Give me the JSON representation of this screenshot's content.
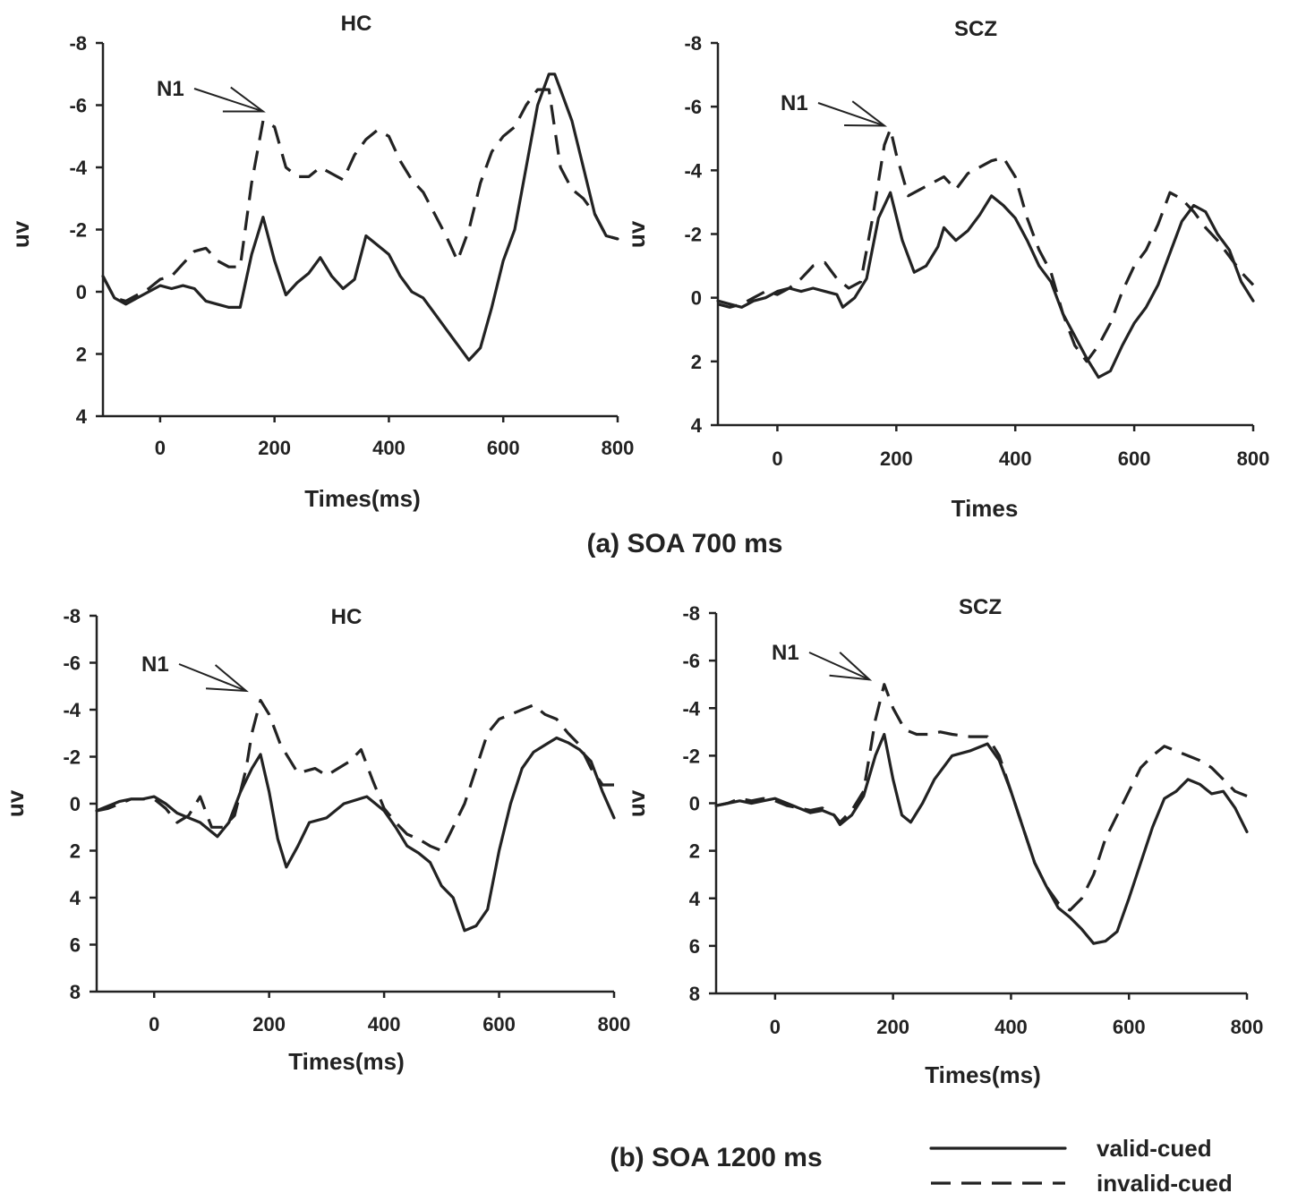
{
  "captions": {
    "top": "(a) SOA 700 ms",
    "bottom": "(b) SOA 1200 ms"
  },
  "legend": {
    "valid": "valid-cued",
    "invalid": "invalid-cued"
  },
  "annotation": "N1",
  "chart_data": [
    {
      "type": "line",
      "title": "HC",
      "xlabel": "Times(ms)",
      "ylabel": "uv",
      "xlim": [
        -100,
        800
      ],
      "ylim": [
        4,
        -8
      ],
      "y_inverted": true,
      "xticks": [
        0,
        200,
        400,
        600,
        800
      ],
      "yticks": [
        -8,
        -6,
        -4,
        -2,
        0,
        2,
        4
      ],
      "annotation": {
        "text": "N1",
        "x": 180,
        "y": -5.8
      },
      "series": [
        {
          "name": "valid-cued",
          "style": "solid",
          "x": [
            -100,
            -80,
            -60,
            -40,
            -20,
            0,
            20,
            40,
            60,
            80,
            100,
            120,
            140,
            160,
            180,
            200,
            220,
            240,
            260,
            280,
            300,
            320,
            340,
            360,
            380,
            400,
            420,
            440,
            460,
            480,
            500,
            520,
            540,
            560,
            580,
            600,
            620,
            640,
            660,
            680,
            690,
            700,
            720,
            740,
            760,
            780,
            800
          ],
          "y": [
            -0.5,
            0.2,
            0.4,
            0.2,
            0,
            -0.2,
            -0.1,
            -0.2,
            -0.1,
            0.3,
            0.4,
            0.5,
            0.5,
            -1.2,
            -2.4,
            -1.0,
            0.1,
            -0.3,
            -0.6,
            -1.1,
            -0.5,
            -0.1,
            -0.4,
            -1.8,
            -1.5,
            -1.2,
            -0.5,
            0,
            0.2,
            0.7,
            1.2,
            1.7,
            2.2,
            1.8,
            0.5,
            -1.0,
            -2.0,
            -4.0,
            -6.0,
            -7.0,
            -7.0,
            -6.5,
            -5.5,
            -4.0,
            -2.5,
            -1.8,
            -1.7
          ]
        },
        {
          "name": "invalid-cued",
          "style": "dashed",
          "x": [
            -100,
            -80,
            -60,
            -40,
            -20,
            0,
            20,
            40,
            60,
            80,
            100,
            120,
            140,
            160,
            180,
            200,
            220,
            240,
            260,
            280,
            300,
            320,
            340,
            360,
            380,
            400,
            420,
            440,
            460,
            480,
            500,
            520,
            540,
            560,
            580,
            600,
            620,
            640,
            660,
            680,
            700,
            720,
            740,
            760,
            780,
            800
          ],
          "y": [
            -0.5,
            0.2,
            0.3,
            0.1,
            -0.1,
            -0.4,
            -0.5,
            -0.9,
            -1.3,
            -1.4,
            -1.0,
            -0.8,
            -0.8,
            -3.5,
            -5.5,
            -5.3,
            -4.0,
            -3.7,
            -3.7,
            -4.0,
            -3.8,
            -3.6,
            -4.4,
            -4.9,
            -5.2,
            -5.0,
            -4.2,
            -3.6,
            -3.2,
            -2.5,
            -1.8,
            -1.0,
            -2.0,
            -3.5,
            -4.5,
            -5.0,
            -5.3,
            -6.0,
            -6.5,
            -6.5,
            -4.0,
            -3.3,
            -3.0,
            -2.5,
            -1.8,
            -1.7
          ]
        }
      ]
    },
    {
      "type": "line",
      "title": "SCZ",
      "xlabel": "Times",
      "ylabel": "uv",
      "xlim": [
        -100,
        800
      ],
      "ylim": [
        4,
        -8
      ],
      "y_inverted": true,
      "xticks": [
        0,
        200,
        400,
        600,
        800
      ],
      "yticks": [
        -8,
        -6,
        -4,
        -2,
        0,
        2,
        4
      ],
      "annotation": {
        "text": "N1",
        "x": 180,
        "y": -5.4
      },
      "series": [
        {
          "name": "valid-cued",
          "style": "solid",
          "x": [
            -100,
            -80,
            -60,
            -40,
            -20,
            0,
            20,
            40,
            60,
            80,
            100,
            110,
            130,
            150,
            170,
            190,
            210,
            230,
            250,
            270,
            280,
            300,
            320,
            340,
            360,
            380,
            400,
            420,
            440,
            460,
            480,
            500,
            520,
            540,
            560,
            580,
            600,
            620,
            640,
            660,
            680,
            700,
            720,
            740,
            760,
            780,
            800
          ],
          "y": [
            0.1,
            0.2,
            0.3,
            0.1,
            0,
            -0.2,
            -0.3,
            -0.2,
            -0.3,
            -0.2,
            -0.1,
            0.3,
            0,
            -0.6,
            -2.5,
            -3.3,
            -1.8,
            -0.8,
            -1.0,
            -1.6,
            -2.2,
            -1.8,
            -2.1,
            -2.6,
            -3.2,
            -2.9,
            -2.5,
            -1.8,
            -1.0,
            -0.5,
            0.5,
            1.2,
            1.9,
            2.5,
            2.3,
            1.5,
            0.8,
            0.3,
            -0.4,
            -1.4,
            -2.4,
            -2.9,
            -2.7,
            -2.0,
            -1.5,
            -0.5,
            0.1
          ]
        },
        {
          "name": "invalid-cued",
          "style": "dashed",
          "x": [
            -100,
            -80,
            -60,
            -40,
            -20,
            0,
            20,
            40,
            60,
            80,
            100,
            120,
            140,
            160,
            180,
            190,
            200,
            220,
            240,
            260,
            280,
            300,
            320,
            340,
            360,
            380,
            400,
            420,
            440,
            460,
            480,
            500,
            520,
            540,
            560,
            580,
            600,
            620,
            640,
            660,
            680,
            700,
            720,
            740,
            760,
            780,
            800
          ],
          "y": [
            0.2,
            0.3,
            0.2,
            0,
            -0.2,
            -0.1,
            -0.3,
            -0.6,
            -1.0,
            -1.1,
            -0.6,
            -0.3,
            -0.5,
            -2.5,
            -4.8,
            -5.3,
            -4.5,
            -3.2,
            -3.4,
            -3.6,
            -3.8,
            -3.4,
            -3.9,
            -4.1,
            -4.3,
            -4.4,
            -3.8,
            -2.5,
            -1.5,
            -0.8,
            0.5,
            1.5,
            2.0,
            1.5,
            0.8,
            -0.2,
            -1.0,
            -1.5,
            -2.3,
            -3.3,
            -3.1,
            -2.7,
            -2.2,
            -1.8,
            -1.3,
            -0.8,
            -0.4
          ]
        }
      ]
    },
    {
      "type": "line",
      "title": "HC",
      "xlabel": "Times(ms)",
      "ylabel": "uv",
      "xlim": [
        -100,
        800
      ],
      "ylim": [
        8,
        -8
      ],
      "y_inverted": true,
      "xticks": [
        0,
        200,
        400,
        600,
        800
      ],
      "yticks": [
        -8,
        -6,
        -4,
        -2,
        0,
        2,
        4,
        6,
        8
      ],
      "annotation": {
        "text": "N1",
        "x": 160,
        "y": -4.8
      },
      "series": [
        {
          "name": "valid-cued",
          "style": "solid",
          "x": [
            -100,
            -80,
            -60,
            -40,
            -20,
            0,
            20,
            40,
            60,
            80,
            100,
            110,
            130,
            150,
            170,
            185,
            200,
            215,
            230,
            250,
            270,
            300,
            330,
            370,
            400,
            420,
            440,
            460,
            480,
            500,
            520,
            540,
            560,
            580,
            600,
            620,
            640,
            660,
            680,
            700,
            720,
            740,
            760,
            780,
            800
          ],
          "y": [
            0.3,
            0.1,
            -0.1,
            -0.2,
            -0.2,
            -0.3,
            0,
            0.4,
            0.6,
            0.8,
            1.2,
            1.4,
            0.8,
            -0.5,
            -1.5,
            -2.1,
            -0.5,
            1.5,
            2.7,
            1.8,
            0.8,
            0.6,
            0,
            -0.3,
            0.3,
            1.0,
            1.8,
            2.1,
            2.5,
            3.5,
            4.0,
            5.4,
            5.2,
            4.5,
            2.0,
            0,
            -1.5,
            -2.2,
            -2.5,
            -2.8,
            -2.6,
            -2.3,
            -1.8,
            -0.5,
            0.6
          ]
        },
        {
          "name": "invalid-cued",
          "style": "dashed",
          "x": [
            -100,
            -80,
            -60,
            -40,
            -20,
            0,
            20,
            40,
            60,
            80,
            100,
            120,
            140,
            160,
            170,
            185,
            200,
            220,
            250,
            280,
            300,
            320,
            340,
            360,
            380,
            400,
            420,
            440,
            460,
            480,
            500,
            520,
            540,
            560,
            580,
            600,
            620,
            640,
            660,
            680,
            700,
            720,
            740,
            760,
            780,
            800
          ],
          "y": [
            0.3,
            0.2,
            0,
            -0.2,
            -0.2,
            -0.2,
            0.2,
            0.8,
            0.5,
            -0.3,
            1.0,
            1.0,
            0.5,
            -1.5,
            -3.0,
            -4.4,
            -3.8,
            -2.5,
            -1.3,
            -1.5,
            -1.2,
            -1.5,
            -1.8,
            -2.3,
            -1.0,
            0.2,
            0.8,
            1.3,
            1.5,
            1.8,
            2.0,
            1.0,
            0,
            -1.5,
            -3.0,
            -3.6,
            -3.8,
            -4.0,
            -4.2,
            -3.8,
            -3.6,
            -3.0,
            -2.5,
            -1.5,
            -0.8,
            -0.8
          ]
        }
      ]
    },
    {
      "type": "line",
      "title": "SCZ",
      "xlabel": "Times(ms)",
      "ylabel": "uv",
      "xlim": [
        -100,
        800
      ],
      "ylim": [
        8,
        -8
      ],
      "y_inverted": true,
      "xticks": [
        0,
        200,
        400,
        600,
        800
      ],
      "yticks": [
        -8,
        -6,
        -4,
        -2,
        0,
        2,
        4,
        6,
        8
      ],
      "annotation": {
        "text": "N1",
        "x": 160,
        "y": -5.2
      },
      "series": [
        {
          "name": "valid-cued",
          "style": "solid",
          "x": [
            -100,
            -80,
            -60,
            -40,
            -20,
            0,
            20,
            40,
            60,
            80,
            100,
            110,
            130,
            150,
            170,
            185,
            200,
            215,
            230,
            250,
            270,
            300,
            330,
            360,
            380,
            400,
            420,
            440,
            460,
            480,
            500,
            520,
            540,
            560,
            580,
            600,
            620,
            640,
            660,
            680,
            700,
            720,
            740,
            760,
            780,
            800
          ],
          "y": [
            0.1,
            0,
            -0.1,
            0,
            -0.1,
            -0.2,
            0,
            0.2,
            0.4,
            0.3,
            0.5,
            0.9,
            0.5,
            -0.3,
            -2.0,
            -2.9,
            -1.0,
            0.5,
            0.8,
            0,
            -1.0,
            -2.0,
            -2.2,
            -2.5,
            -1.8,
            -0.5,
            1.0,
            2.5,
            3.5,
            4.4,
            4.8,
            5.3,
            5.9,
            5.8,
            5.4,
            4.0,
            2.5,
            1.0,
            -0.2,
            -0.5,
            -1.0,
            -0.8,
            -0.4,
            -0.5,
            0.2,
            1.2
          ]
        },
        {
          "name": "invalid-cued",
          "style": "dashed",
          "x": [
            -100,
            -80,
            -60,
            -40,
            -20,
            0,
            20,
            40,
            60,
            80,
            100,
            110,
            130,
            150,
            170,
            185,
            200,
            220,
            240,
            260,
            280,
            300,
            330,
            360,
            380,
            400,
            420,
            440,
            460,
            480,
            500,
            520,
            540,
            560,
            580,
            600,
            620,
            640,
            660,
            680,
            700,
            720,
            740,
            760,
            780,
            800
          ],
          "y": [
            0.1,
            0,
            -0.2,
            -0.1,
            -0.2,
            -0.1,
            0.1,
            0.2,
            0.3,
            0.2,
            0.5,
            0.8,
            0.3,
            -0.5,
            -3.5,
            -5.0,
            -4.0,
            -3.1,
            -2.9,
            -2.9,
            -3.0,
            -2.9,
            -2.8,
            -2.8,
            -2.0,
            -0.5,
            1.0,
            2.5,
            3.5,
            4.2,
            4.5,
            4.0,
            3.0,
            1.5,
            0.5,
            -0.5,
            -1.5,
            -2.0,
            -2.4,
            -2.2,
            -2.0,
            -1.8,
            -1.5,
            -1.0,
            -0.5,
            -0.3
          ]
        }
      ]
    }
  ]
}
